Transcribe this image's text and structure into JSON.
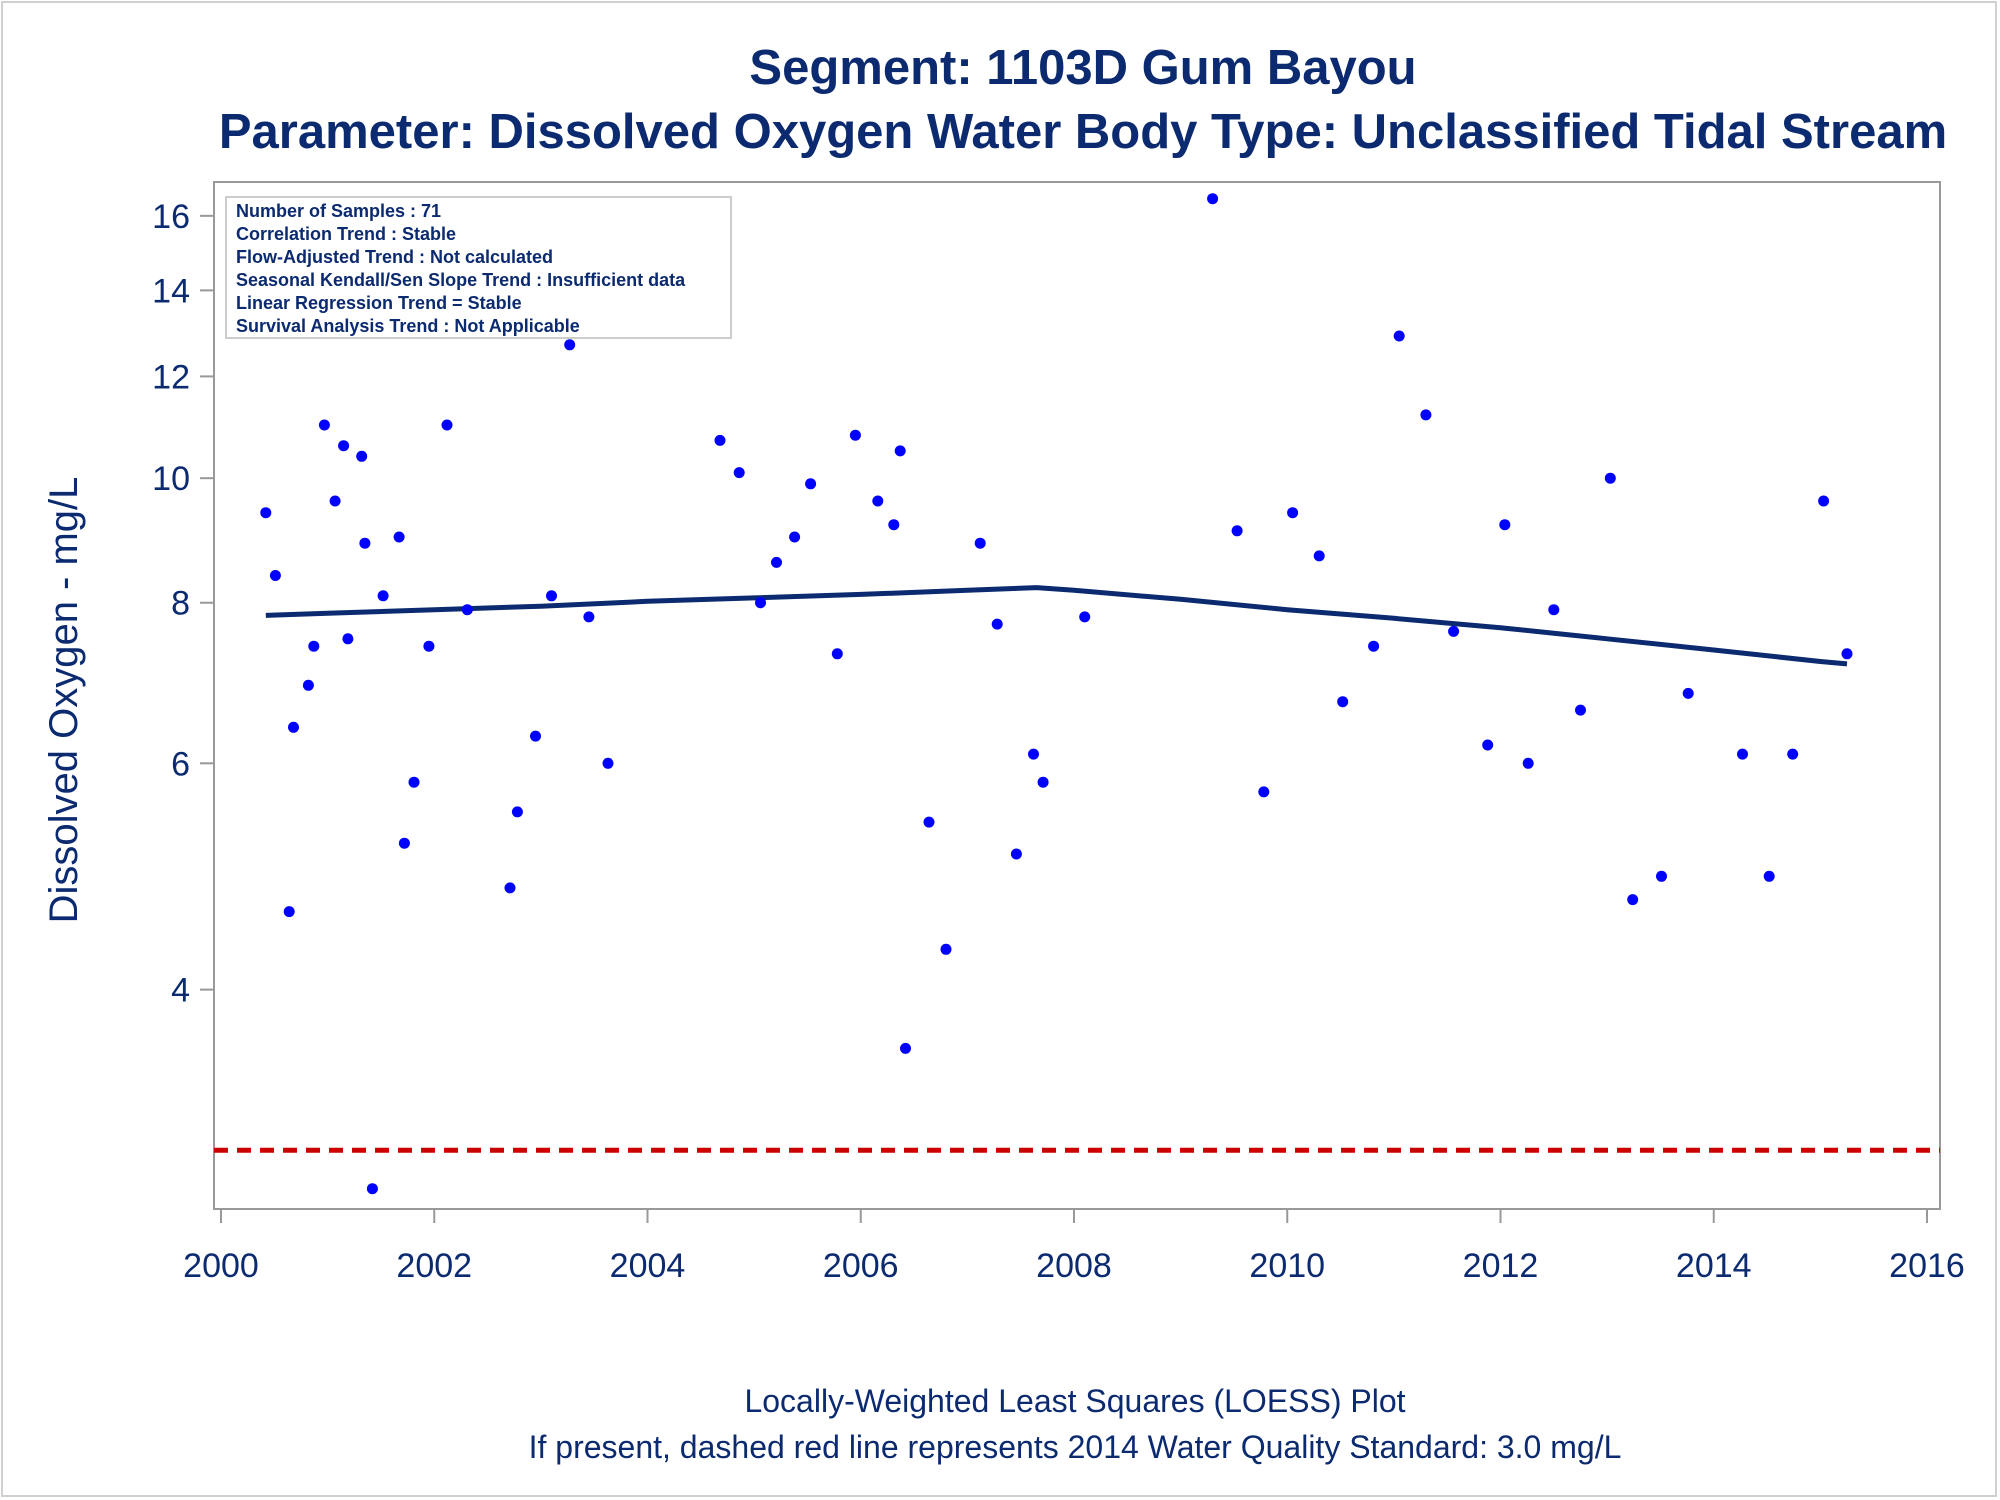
{
  "colors": {
    "text": "#0b2a6f",
    "point": "#0000ff",
    "loess": "#0b2a6f",
    "standard_line": "#cc0000",
    "plot_border": "#999999",
    "stats_border": "#cccccc"
  },
  "chart_data": {
    "type": "scatter",
    "title": "Segment: 1103D  Gum Bayou",
    "subtitle": "Parameter: Dissolved Oxygen   Water Body Type: Unclassified Tidal Stream",
    "xlabel": "",
    "ylabel": "Dissolved Oxygen - mg/L",
    "yscale": "log",
    "xlim": [
      2000,
      2016
    ],
    "ylim": [
      2.7,
      17.0
    ],
    "grid": false,
    "x_ticks": [
      2000,
      2002,
      2004,
      2006,
      2008,
      2010,
      2012,
      2014,
      2016
    ],
    "y_ticks": [
      4,
      6,
      8,
      10,
      12,
      14,
      16
    ],
    "stats": [
      "Number of Samples : 71",
      "Correlation Trend : Stable",
      "Flow-Adjusted Trend : Not calculated",
      "Seasonal Kendall/Sen Slope Trend : Insufficient data",
      "Linear Regression Trend = Stable",
      "Survival Analysis Trend : Not Applicable"
    ],
    "footnotes": [
      "Locally-Weighted Least Squares (LOESS) Plot",
      "If present, dashed red line represents 2014 Water Quality Standard: 3.0 mg/L"
    ],
    "standard": {
      "value": 3.0,
      "style": "dashed"
    },
    "series": [
      {
        "type": "scatter",
        "points": [
          [
            2000.42,
            9.4
          ],
          [
            2000.51,
            8.4
          ],
          [
            2000.64,
            4.6
          ],
          [
            2000.68,
            6.4
          ],
          [
            2000.82,
            6.9
          ],
          [
            2000.87,
            7.4
          ],
          [
            2000.97,
            11.0
          ],
          [
            2001.07,
            9.6
          ],
          [
            2001.15,
            10.6
          ],
          [
            2001.19,
            7.5
          ],
          [
            2001.32,
            10.4
          ],
          [
            2001.35,
            8.9
          ],
          [
            2001.52,
            8.1
          ],
          [
            2001.42,
            2.8
          ],
          [
            2001.67,
            9.0
          ],
          [
            2001.72,
            5.2
          ],
          [
            2001.81,
            5.8
          ],
          [
            2001.95,
            7.4
          ],
          [
            2002.12,
            11.0
          ],
          [
            2002.31,
            7.9
          ],
          [
            2002.71,
            4.8
          ],
          [
            2002.78,
            5.5
          ],
          [
            2002.95,
            6.3
          ],
          [
            2003.1,
            8.1
          ],
          [
            2003.27,
            12.7
          ],
          [
            2003.45,
            7.8
          ],
          [
            2003.63,
            6.0
          ],
          [
            2004.68,
            10.7
          ],
          [
            2004.86,
            10.1
          ],
          [
            2005.06,
            8.0
          ],
          [
            2005.21,
            8.6
          ],
          [
            2005.38,
            9.0
          ],
          [
            2005.53,
            9.9
          ],
          [
            2005.78,
            7.3
          ],
          [
            2005.95,
            10.8
          ],
          [
            2006.16,
            9.6
          ],
          [
            2006.31,
            9.2
          ],
          [
            2006.37,
            10.5
          ],
          [
            2006.42,
            3.6
          ],
          [
            2006.64,
            5.4
          ],
          [
            2006.8,
            4.3
          ],
          [
            2007.12,
            8.9
          ],
          [
            2007.28,
            7.7
          ],
          [
            2007.46,
            5.1
          ],
          [
            2007.62,
            6.1
          ],
          [
            2007.71,
            5.8
          ],
          [
            2008.1,
            7.8
          ],
          [
            2009.3,
            16.5
          ],
          [
            2009.53,
            9.1
          ],
          [
            2009.78,
            5.7
          ],
          [
            2010.05,
            9.4
          ],
          [
            2010.3,
            8.7
          ],
          [
            2010.52,
            6.7
          ],
          [
            2010.81,
            7.4
          ],
          [
            2011.05,
            12.9
          ],
          [
            2011.3,
            11.2
          ],
          [
            2011.56,
            7.6
          ],
          [
            2011.88,
            6.2
          ],
          [
            2012.04,
            9.2
          ],
          [
            2012.26,
            6.0
          ],
          [
            2012.5,
            7.9
          ],
          [
            2012.75,
            6.6
          ],
          [
            2013.03,
            10.0
          ],
          [
            2013.24,
            4.7
          ],
          [
            2013.51,
            4.9
          ],
          [
            2013.76,
            6.8
          ],
          [
            2014.27,
            6.1
          ],
          [
            2014.52,
            4.9
          ],
          [
            2014.74,
            6.1
          ],
          [
            2015.03,
            9.6
          ],
          [
            2015.25,
            7.3
          ]
        ]
      },
      {
        "type": "line",
        "points": [
          [
            2000.42,
            7.82
          ],
          [
            2001.0,
            7.85
          ],
          [
            2002.0,
            7.9
          ],
          [
            2003.0,
            7.95
          ],
          [
            2004.0,
            8.02
          ],
          [
            2005.0,
            8.07
          ],
          [
            2006.0,
            8.12
          ],
          [
            2007.0,
            8.18
          ],
          [
            2007.65,
            8.22
          ],
          [
            2008.0,
            8.18
          ],
          [
            2009.0,
            8.05
          ],
          [
            2010.0,
            7.9
          ],
          [
            2011.0,
            7.78
          ],
          [
            2012.0,
            7.65
          ],
          [
            2013.0,
            7.5
          ],
          [
            2014.0,
            7.35
          ],
          [
            2015.0,
            7.2
          ],
          [
            2015.25,
            7.17
          ]
        ]
      }
    ]
  }
}
